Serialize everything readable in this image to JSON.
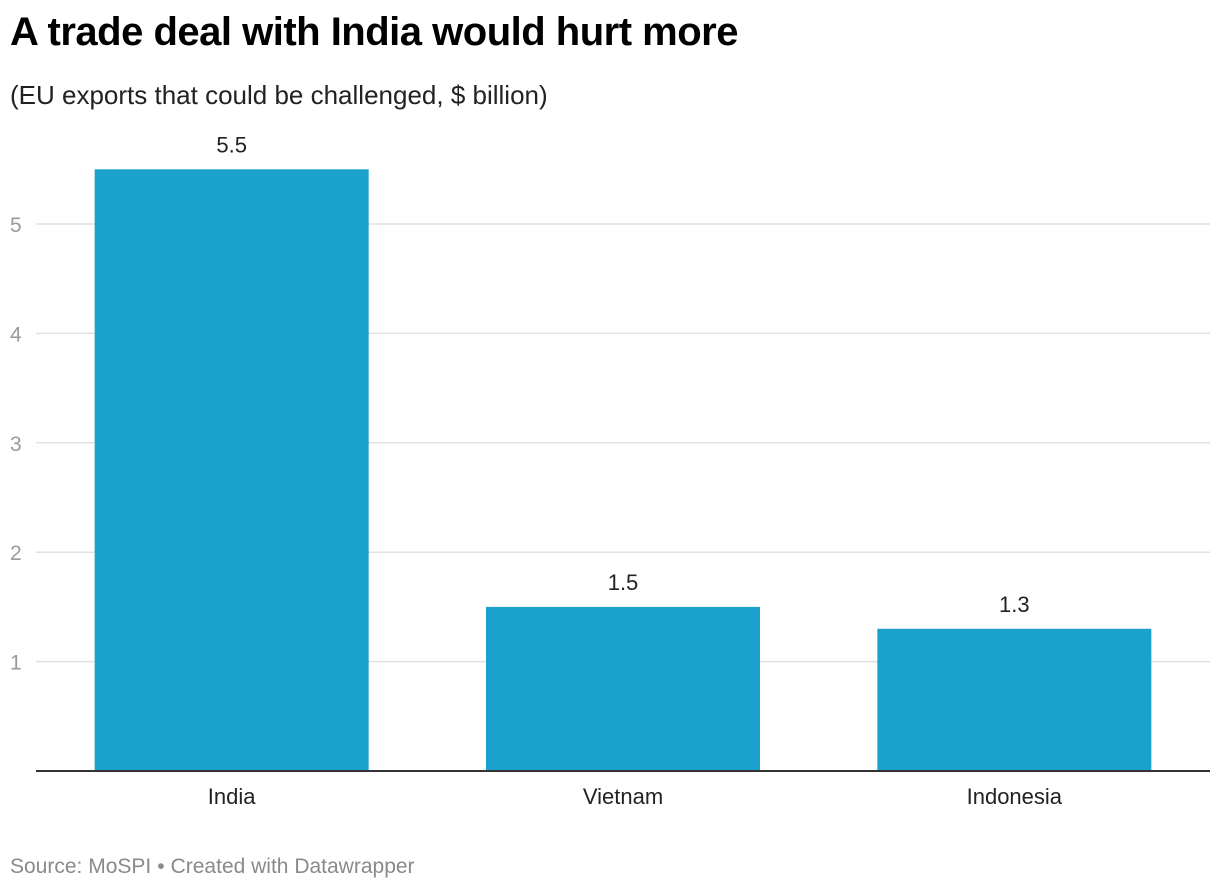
{
  "header": {
    "title": "A trade deal with India would hurt more",
    "subtitle": "(EU exports that could be challenged, $ billion)"
  },
  "footer": {
    "source": "Source: MoSPI",
    "separator": "•",
    "credit": "Created with Datawrapper"
  },
  "colors": {
    "bar": "#1aa1cc",
    "gridline": "#e1e1e1",
    "baseline": "#333333",
    "tick_text": "#9a9a9a",
    "label_text": "#222222"
  },
  "chart_data": {
    "type": "bar",
    "title": "A trade deal with India would hurt more",
    "subtitle": "(EU exports that could be challenged, $ billion)",
    "categories": [
      "India",
      "Vietnam",
      "Indonesia"
    ],
    "values": [
      5.5,
      1.5,
      1.3
    ],
    "value_labels": [
      "5.5",
      "1.5",
      "1.3"
    ],
    "xlabel": "",
    "ylabel": "",
    "ylim": [
      0,
      6
    ],
    "y_ticks": [
      1,
      2,
      3,
      4,
      5
    ],
    "y_tick_labels": [
      "1",
      "2",
      "3",
      "4",
      "5"
    ],
    "grid": true,
    "legend": "none"
  }
}
